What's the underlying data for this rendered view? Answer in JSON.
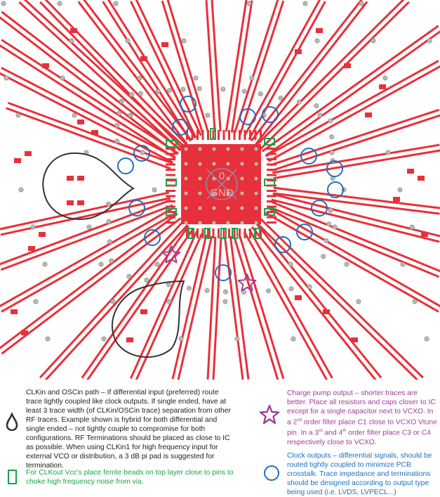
{
  "pcb": {
    "pad_labels": [
      "0",
      "GND"
    ],
    "colors": {
      "copper": "#e8303a",
      "via": "#b8b8b0",
      "ferrite": "#1aa34a",
      "clock": "#1f6fbf",
      "charge_pump": "#a03d9a",
      "clkin": "#333333"
    }
  },
  "legend": {
    "clkin": {
      "icon": "teardrop-icon",
      "text": "CLKin and OSCin path – If differential input (preferred) route trace tightly coupled like clock outputs. If single ended, have at least 3 trace width (of CLKin/OSCin trace) separation from other RF traces. Example shown is hybrid for both differential and single ended – not tightly couple to compromise for both configurations. RF Terminations should be placed as close to IC as possible. When using CLKin1 for high frequency input for external VCO or distribution, a 3 dB pi pad is suggested for termination."
    },
    "ferrite": {
      "icon": "rectangle-icon",
      "text": "For CLKout Vcc's place ferrite beads on top layer close to pins to choke high frequency noise from via."
    },
    "charge_pump": {
      "icon": "star-icon",
      "text_1": "Charge pump output – shorter traces are better. Place all resistors and caps closer to IC except for a single capacitor next to VCXO. In a 2",
      "sup_1": "nd",
      "text_2": " order filter place C1 close to VCXO Vtune pin. In a 3",
      "sup_2": "rd",
      "text_3": " and 4",
      "sup_3": "th",
      "text_4": " order filter place C3 or C4 respectively close to VCXO."
    },
    "clock_outputs": {
      "icon": "circle-icon",
      "text": "Clock outputs – differential signals, should be routed tightly coupled to minimize PCB crosstalk. Trace impedance and terminations should be designed according to output type being used (i.e. LVDS, LVPECL...)"
    }
  }
}
